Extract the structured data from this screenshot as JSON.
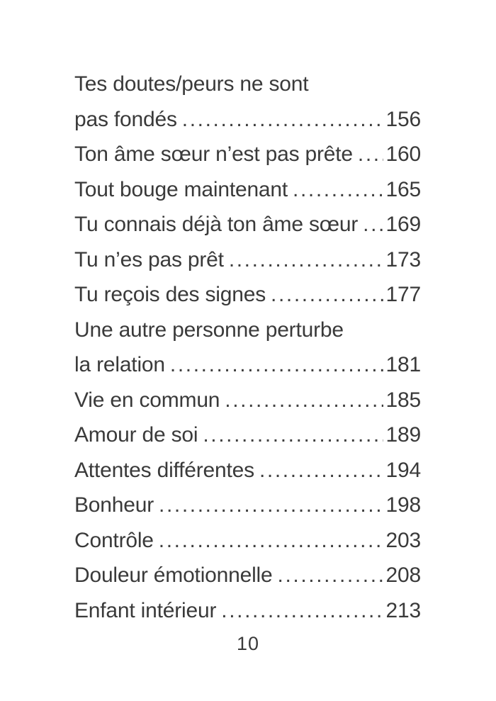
{
  "toc": {
    "rows": [
      {
        "text": "Tes doutes/peurs ne sont",
        "page": ""
      },
      {
        "text": "pas fondés",
        "page": "156"
      },
      {
        "text": "Ton âme sœur n’est pas prête",
        "page": "160"
      },
      {
        "text": "Tout bouge maintenant",
        "page": "165"
      },
      {
        "text": "Tu connais déjà ton âme sœur",
        "page": "169"
      },
      {
        "text": "Tu n’es pas prêt",
        "page": "173"
      },
      {
        "text": "Tu reçois des signes",
        "page": "177"
      },
      {
        "text": "Une autre personne perturbe",
        "page": ""
      },
      {
        "text": "la relation",
        "page": "181"
      },
      {
        "text": "Vie en commun",
        "page": "185"
      },
      {
        "text": "Amour de soi",
        "page": "189"
      },
      {
        "text": "Attentes différentes",
        "page": "194"
      },
      {
        "text": "Bonheur",
        "page": "198"
      },
      {
        "text": "Contrôle",
        "page": "203"
      },
      {
        "text": "Douleur émotionnelle",
        "page": "208"
      },
      {
        "text": "Enfant intérieur",
        "page": "213"
      }
    ],
    "folio": "10"
  }
}
